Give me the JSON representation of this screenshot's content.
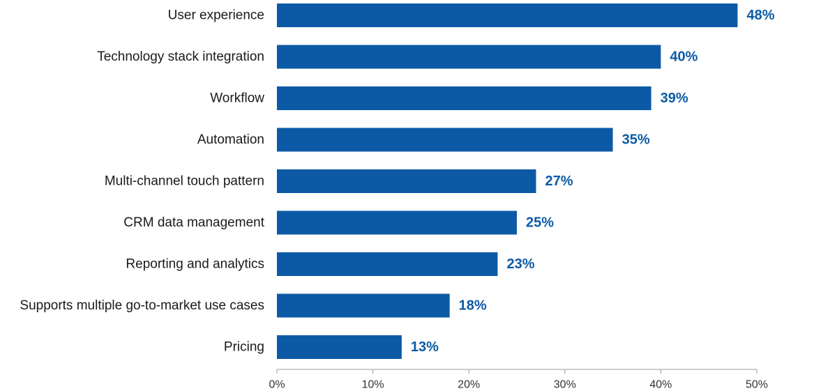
{
  "chart_data": {
    "type": "bar",
    "orientation": "horizontal",
    "categories": [
      "User experience",
      "Technology stack integration",
      "Workflow",
      "Automation",
      "Multi-channel touch pattern",
      "CRM data management",
      "Reporting and analytics",
      "Supports multiple go-to-market use cases",
      "Pricing"
    ],
    "values": [
      48,
      40,
      39,
      35,
      27,
      25,
      23,
      18,
      13
    ],
    "value_labels": [
      "48%",
      "40%",
      "39%",
      "35%",
      "27%",
      "25%",
      "23%",
      "18%",
      "13%"
    ],
    "xticks": [
      0,
      10,
      20,
      30,
      40,
      50
    ],
    "xtick_labels": [
      "0%",
      "10%",
      "20%",
      "30%",
      "40%",
      "50%"
    ],
    "xlim": [
      0,
      50
    ],
    "title": "",
    "xlabel": "",
    "ylabel": "",
    "grid": false,
    "legend": "none",
    "colors": {
      "bar": "#0c5aa6",
      "value_label": "#0c5aa6",
      "axis": "#9a9a9a"
    }
  }
}
